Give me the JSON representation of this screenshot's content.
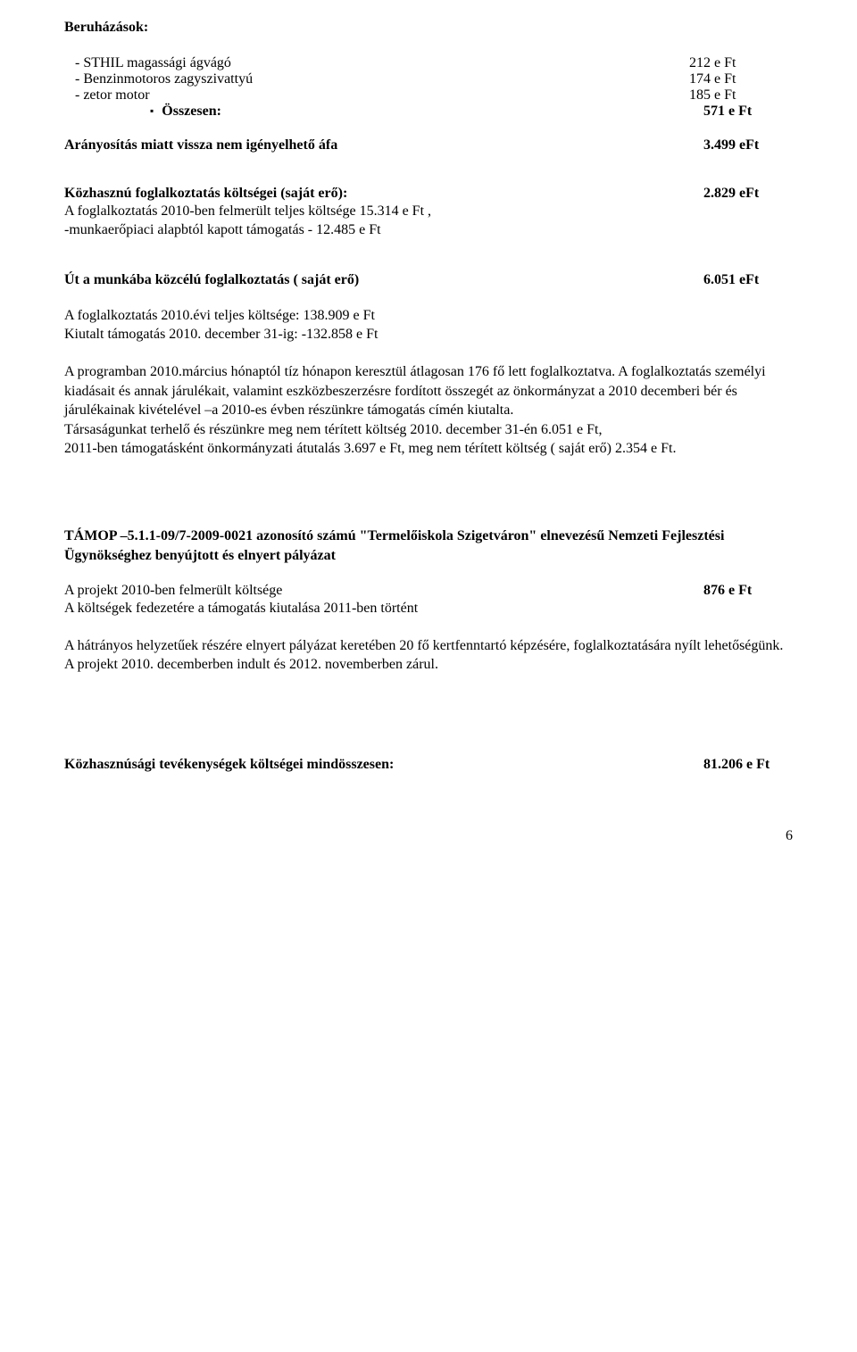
{
  "title": "Beruházások:",
  "investments": [
    {
      "label": "-  STHIL magassági ágvágó",
      "value": "212 e Ft"
    },
    {
      "label": "-  Benzinmotoros zagyszivattyú",
      "value": "174 e Ft"
    },
    {
      "label": "-  zetor motor",
      "value": "185 e Ft"
    }
  ],
  "total": {
    "label": "Összesen:",
    "value": "571 e Ft"
  },
  "afa": {
    "label": "Arányosítás miatt vissza nem igényelhető áfa",
    "value": "3.499 eFt"
  },
  "kozhasznu": {
    "heading": "Közhasznú foglalkoztatás költségei  (saját erő):",
    "value": "2.829 eFt",
    "line1": "A foglalkoztatás 2010-ben felmerült  teljes költsége 15.314 e Ft ,",
    "line2": "-munkaerőpiaci alapbtól kapott támogatás         - 12.485 e Ft"
  },
  "ut": {
    "heading": "Út a munkába közcélú foglalkoztatás  ( saját erő)",
    "value": "6.051 eFt",
    "line1": "A foglalkoztatás 2010.évi teljes költsége:   138.909 e Ft",
    "line2": "Kiutalt támogatás 2010. december 31-ig:  -132.858 e Ft"
  },
  "program": {
    "para1": "A programban 2010.március hónaptól tíz hónapon keresztül átlagosan 176 fő lett foglalkoztatva. A foglalkoztatás személyi kiadásait és annak járulékait, valamint eszközbeszerzésre fordított összegét az önkormányzat a 2010 decemberi  bér és járulékainak kivételével –a 2010-es évben részünkre támogatás címén kiutalta.",
    "para2": "Társaságunkat terhelő és részünkre meg nem térített költség  2010. december 31-én 6.051 e Ft,",
    "para3": "2011-ben támogatásként önkormányzati átutalás 3.697 e Ft, meg nem térített költség ( saját erő) 2.354 e Ft."
  },
  "tamop": {
    "heading": "TÁMOP –5.1.1-09/7-2009-0021 azonosító számú \"Termelőiskola Szigetváron\" elnevezésű Nemzeti Fejlesztési Ügynökséghez benyújtott és elnyert pályázat",
    "line1_left": "A projekt 2010-ben felmerült költsége",
    "line1_right": "876 e Ft",
    "line2": "A költségek fedezetére a támogatás kiutalása 2011-ben történt",
    "para1": "A hátrányos helyzetűek részére elnyert pályázat keretében  20 fő kertfenntartó képzésére, foglalkoztatására nyílt lehetőségünk.",
    "para2": "A projekt  2010. decemberben indult és 2012. novemberben zárul."
  },
  "summary": {
    "label": "Közhasznúsági tevékenységek költségei mindösszesen:",
    "value": "81.206 e Ft"
  },
  "pageNumber": "6"
}
